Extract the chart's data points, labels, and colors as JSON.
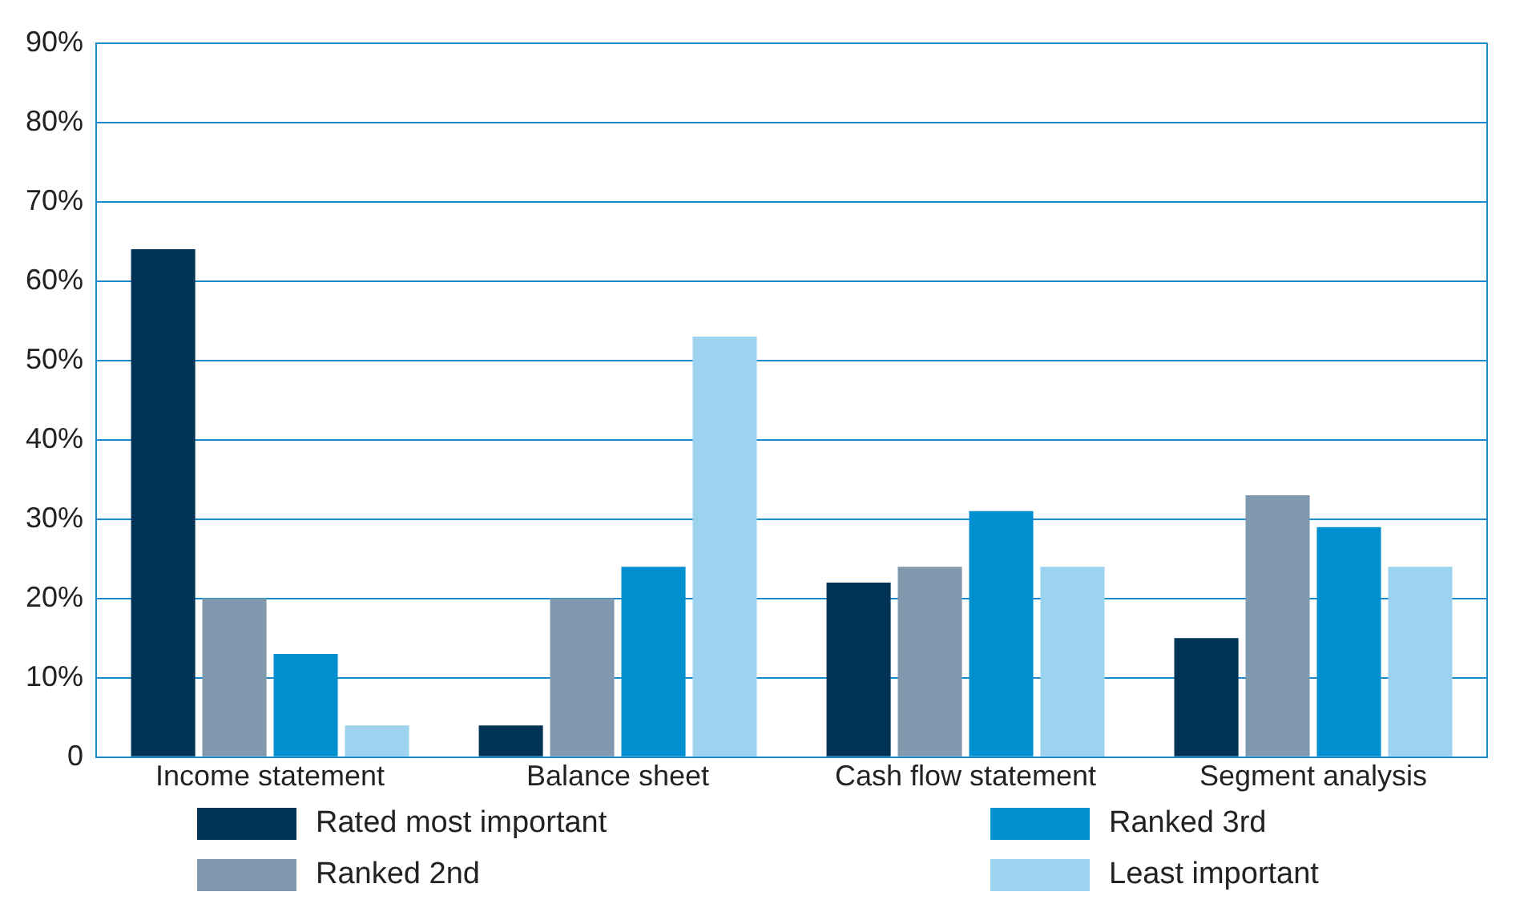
{
  "chart_data": {
    "type": "bar",
    "categories": [
      "Income statement",
      "Balance sheet",
      "Cash flow statement",
      "Segment analysis"
    ],
    "series": [
      {
        "name": "Rated most important",
        "color": "#003356",
        "values": [
          64,
          4,
          22,
          15
        ]
      },
      {
        "name": "Ranked 2nd",
        "color": "#8099ae",
        "values": [
          20,
          20,
          24,
          33
        ]
      },
      {
        "name": "Ranked 3rd",
        "color": "#0090d0",
        "values": [
          13,
          24,
          31,
          29
        ]
      },
      {
        "name": "Least important",
        "color": "#9dd3ee",
        "values": [
          4,
          53,
          24,
          24
        ]
      }
    ],
    "ylim": [
      0,
      90
    ],
    "yticks": [
      0,
      {
        "value": 10,
        "label": "10%"
      },
      {
        "value": 20,
        "label": "20%"
      },
      {
        "value": 30,
        "label": "30%"
      },
      {
        "value": 40,
        "label": "40%"
      },
      {
        "value": 50,
        "label": "50%"
      },
      {
        "value": 60,
        "label": "60%"
      },
      {
        "value": 70,
        "label": "70%"
      },
      {
        "value": 80,
        "label": "80%"
      },
      {
        "value": 90,
        "label": "90%"
      }
    ],
    "grid": "y",
    "legend": "bottom"
  }
}
